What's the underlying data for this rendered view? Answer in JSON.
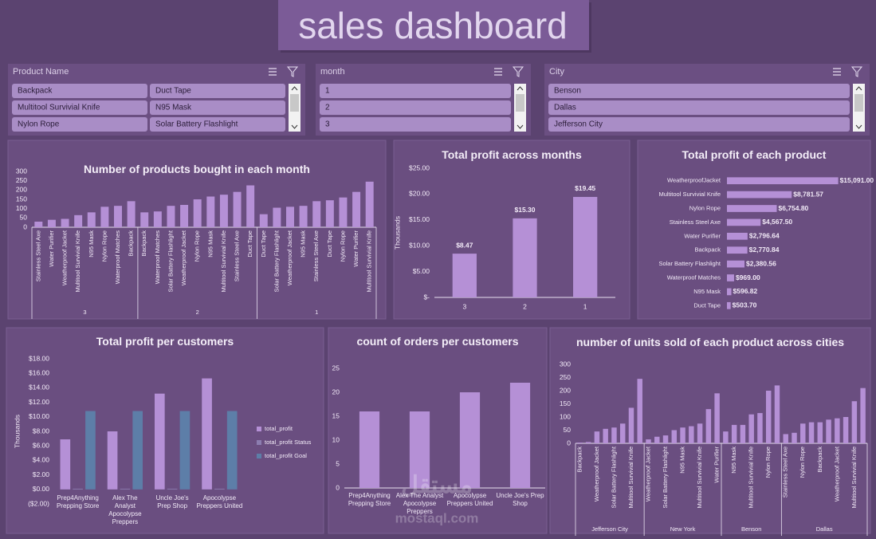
{
  "title": "sales dashboard",
  "slicers": [
    {
      "title": "Product Name",
      "items": [
        "Backpack",
        "Duct Tape",
        "Multitool Survivial Knife",
        "N95 Mask",
        "Nylon Rope",
        "Solar Battery Flashlight"
      ]
    },
    {
      "title": "month",
      "items": [
        "1",
        "2",
        "3"
      ]
    },
    {
      "title": "City",
      "items": [
        "Benson",
        "Dallas",
        "Jefferson City"
      ]
    }
  ],
  "watermark": [
    "مستقل",
    "mostaql.com"
  ],
  "chart_data": [
    {
      "type": "grouped_bar",
      "title": "Number of products bought in each month",
      "color": "#b590d6",
      "ylim": [
        0,
        300
      ],
      "yticks": [
        0,
        50,
        100,
        150,
        200,
        250,
        300
      ],
      "groups": [
        {
          "name": "3",
          "categories": [
            "Stainless Steel Axe",
            "Water Purifier",
            "Weatherproof Jacket",
            "Multitool Survivial Knife",
            "N95 Mask",
            "Nylon Rope",
            "Waterproof Matches",
            "Backpack"
          ],
          "values": [
            30,
            40,
            45,
            65,
            80,
            110,
            115,
            140
          ]
        },
        {
          "name": "2",
          "categories": [
            "Backpack",
            "Waterproof Matches",
            "Solar Battery Flashlight",
            "Weatherproof Jacket",
            "Nylon Rope",
            "N95 Mask",
            "Multitool Survivial Knife",
            "Stainless Steel Axe",
            "Duct Tape"
          ],
          "values": [
            80,
            85,
            115,
            120,
            150,
            165,
            175,
            190,
            225
          ]
        },
        {
          "name": "1",
          "categories": [
            "Duct Tape",
            "Solar Battery Flashlight",
            "Weatherproof Jacket",
            "N95 Mask",
            "Stainless Steel Axe",
            "Duct Tape",
            "Nylon Rope",
            "Water Purifier",
            "Multitool Survivial Knife"
          ],
          "values": [
            70,
            105,
            110,
            115,
            140,
            145,
            160,
            190,
            245
          ]
        }
      ]
    },
    {
      "type": "bar",
      "title": "Total profit across months",
      "y_label": "Thousands",
      "color": "#b590d6",
      "categories": [
        "3",
        "2",
        "1"
      ],
      "values": [
        8.47,
        15.3,
        19.45
      ],
      "value_labels": [
        "$8.47",
        "$15.30",
        "$19.45"
      ],
      "ylim": [
        0,
        25
      ],
      "yticks": [
        {
          "value": 0,
          "label": "$-"
        },
        {
          "value": 5,
          "label": "$5.00"
        },
        {
          "value": 10,
          "label": "$10.00"
        },
        {
          "value": 15,
          "label": "$15.00"
        },
        {
          "value": 20,
          "label": "$20.00"
        },
        {
          "value": 25,
          "label": "$25.00"
        }
      ]
    },
    {
      "type": "hbar",
      "title": "Total profit of each product",
      "color": "#b590d6",
      "xlim": [
        0,
        16000
      ],
      "categories": [
        "WeatherproofJacket",
        "Multitool Survivial Knife",
        "Nylon Rope",
        "Stainless Steel Axe",
        "Water Purifier",
        "Backpack",
        "Solar Battery Flashlight",
        "Waterproof Matches",
        "N95 Mask",
        "Duct Tape"
      ],
      "values": [
        15091.0,
        8781.57,
        6754.8,
        4567.5,
        2796.64,
        2770.84,
        2380.56,
        969.0,
        596.82,
        503.7
      ],
      "value_labels": [
        "$15,091.00",
        "$8,781.57",
        "$6,754.80",
        "$4,567.50",
        "$2,796.64",
        "$2,770.84",
        "$2,380.56",
        "$969.00",
        "$596.82",
        "$503.70"
      ]
    },
    {
      "type": "multi_bar",
      "title": "Total profit per customers",
      "y_label": "Thousands",
      "legend": "right",
      "ylim": [
        -2,
        18
      ],
      "yticks": [
        {
          "value": -2,
          "label": "($2.00)"
        },
        {
          "value": 0,
          "label": "$0.00"
        },
        {
          "value": 2,
          "label": "$2.00"
        },
        {
          "value": 4,
          "label": "$4.00"
        },
        {
          "value": 6,
          "label": "$6.00"
        },
        {
          "value": 8,
          "label": "$8.00"
        },
        {
          "value": 10,
          "label": "$10.00"
        },
        {
          "value": 12,
          "label": "$12.00"
        },
        {
          "value": 14,
          "label": "$14.00"
        },
        {
          "value": 16,
          "label": "$16.00"
        },
        {
          "value": 18,
          "label": "$18.00"
        }
      ],
      "categories": [
        "Prep4Anything Prepping Store",
        "Alex The Analyst Apocolypse Preppers",
        "Uncle Joe's Prep Shop",
        "Apocolypse Preppers United"
      ],
      "series": [
        {
          "name": "total_profit",
          "color": "#b590d6",
          "values": [
            6.9,
            8.0,
            13.2,
            15.3
          ]
        },
        {
          "name": "total_profit Status",
          "color": "#8c7db0",
          "values": [
            0.1,
            0.1,
            0.1,
            0.1
          ]
        },
        {
          "name": "total_profit Goal",
          "color": "#5d7ea8",
          "values": [
            10.8,
            10.8,
            10.8,
            10.8
          ]
        }
      ]
    },
    {
      "type": "bar",
      "title": "count of orders per customers",
      "color": "#b590d6",
      "ylim": [
        0,
        25
      ],
      "yticks": [
        0,
        5,
        10,
        15,
        20,
        25
      ],
      "categories": [
        "Prep4Anything Prepping Store",
        "Alex The Analyst Apocolypse Preppers",
        "Apocolypse Preppers United",
        "Uncle Joe's Prep Shop"
      ],
      "values": [
        16,
        16,
        20,
        22
      ]
    },
    {
      "type": "grouped_bar",
      "title": "number of units sold of each product across cities",
      "color": "#b590d6",
      "ylim": [
        0,
        300
      ],
      "yticks": [
        0,
        50,
        100,
        150,
        200,
        250,
        300
      ],
      "groups": [
        {
          "name": "Jefferson City",
          "categories": [
            "Backpack",
            null,
            "Weatherproof Jacket",
            null,
            "Solar Battery Flashlight",
            null,
            "Multitool Survivial Knife",
            null
          ],
          "values": [
            3,
            5,
            45,
            55,
            60,
            75,
            135,
            245
          ]
        },
        {
          "name": "New York",
          "categories": [
            "Weatherproof Jacket",
            null,
            "Solar Battery Flashlight",
            null,
            "N95 Mask",
            null,
            "Multitool Survivial Knife",
            null,
            "Water Purifier"
          ],
          "values": [
            15,
            25,
            30,
            50,
            60,
            65,
            75,
            130,
            190
          ]
        },
        {
          "name": "Benson",
          "categories": [
            null,
            "N95 Mask",
            null,
            "Multitool Survivial Knife",
            null,
            "Nylon Rope",
            null
          ],
          "values": [
            45,
            70,
            70,
            110,
            115,
            200,
            220
          ]
        },
        {
          "name": "Dallas",
          "categories": [
            "Stainless Steel Axe",
            null,
            "Nylon Rope",
            null,
            "Backpack",
            null,
            "Weatherproof Jacket",
            null,
            "Multitool Survivial Knife",
            null
          ],
          "values": [
            35,
            40,
            75,
            80,
            80,
            90,
            95,
            100,
            160,
            210
          ]
        }
      ]
    }
  ]
}
